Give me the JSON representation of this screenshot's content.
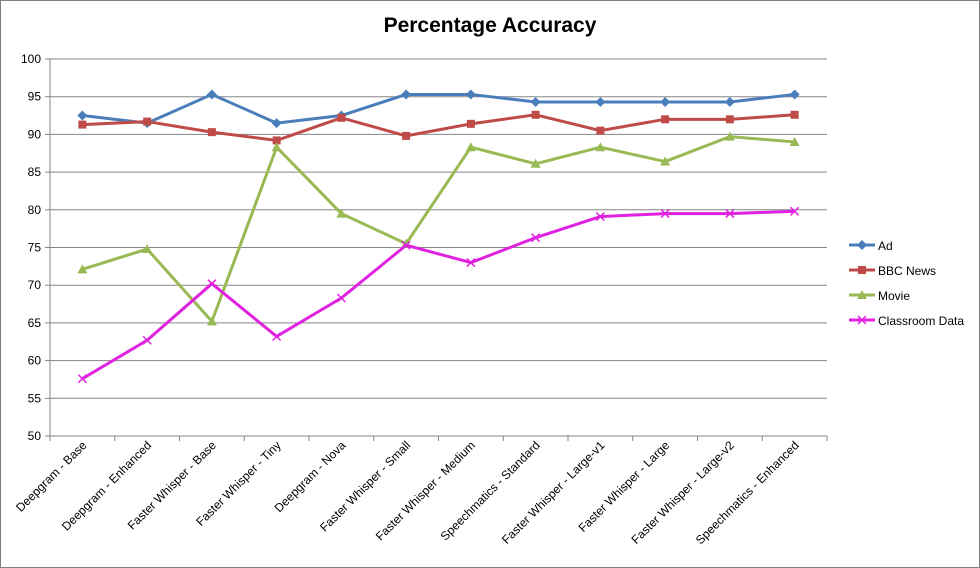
{
  "chart_data": {
    "type": "line",
    "title": "Percentage Accuracy",
    "xlabel": "",
    "ylabel": "",
    "ylim": [
      50,
      100
    ],
    "yticks": [
      "50",
      "55",
      "60",
      "65",
      "70",
      "75",
      "80",
      "85",
      "90",
      "95",
      "100"
    ],
    "grid": true,
    "legend_position": "right",
    "categories": [
      "Deepgram - Base",
      "Deepgram - Enhanced",
      "Faster Whisper - Base",
      "Faster Whisper - Tiny",
      "Deepgram - Nova",
      "Faster Whisper - Small",
      "Faster Whisper - Medium",
      "Speechmatics - Standard",
      "Faster Whisper - Large-v1",
      "Faster Whisper - Large",
      "Faster Whisper - Large-v2",
      "Speechmatics - Enhanced"
    ],
    "series": [
      {
        "name": "Ad",
        "color": "#4a7ebb",
        "marker": "diamond",
        "values": [
          92.5,
          91.5,
          95.3,
          91.5,
          92.5,
          95.3,
          95.3,
          94.3,
          94.3,
          94.3,
          94.3,
          95.3
        ]
      },
      {
        "name": "BBC News",
        "color": "#be4b48",
        "marker": "square",
        "values": [
          91.3,
          91.7,
          90.3,
          89.2,
          92.2,
          89.8,
          91.4,
          92.6,
          90.5,
          92.0,
          92.0,
          92.6
        ]
      },
      {
        "name": "Movie",
        "color": "#98b954",
        "marker": "triangle",
        "values": [
          72.1,
          74.8,
          65.2,
          88.3,
          79.5,
          75.5,
          88.3,
          86.1,
          88.3,
          86.4,
          89.7,
          89.0
        ]
      },
      {
        "name": "Classroom Data",
        "color": "#e022e0",
        "marker": "x",
        "values": [
          57.6,
          62.7,
          70.2,
          63.2,
          68.3,
          75.3,
          73.0,
          76.3,
          79.1,
          79.5,
          79.5,
          79.8
        ]
      }
    ]
  }
}
